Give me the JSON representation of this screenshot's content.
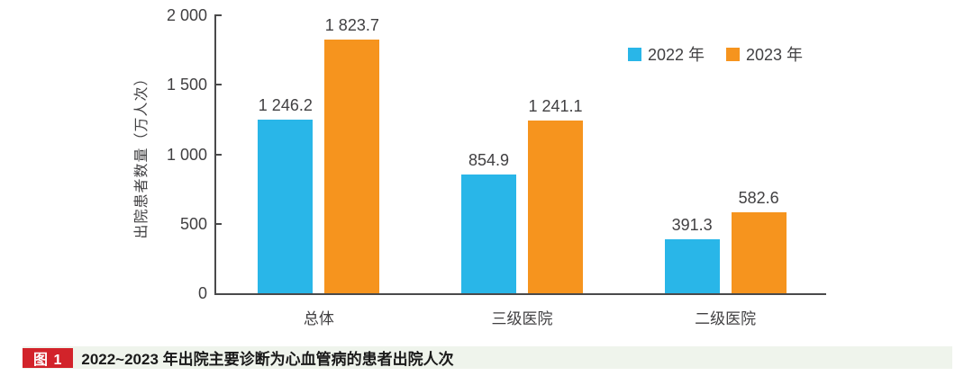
{
  "chart_data": {
    "type": "bar",
    "categories": [
      "总体",
      "三级医院",
      "二级医院"
    ],
    "series": [
      {
        "name": "2022 年",
        "color": "#29b6e8",
        "values": [
          1246.2,
          854.9,
          391.3
        ],
        "value_labels": [
          "1 246.2",
          "854.9",
          "391.3"
        ]
      },
      {
        "name": "2023 年",
        "color": "#f6941e",
        "values": [
          1823.7,
          1241.1,
          582.6
        ],
        "value_labels": [
          "1 823.7",
          "1 241.1",
          "582.6"
        ]
      }
    ],
    "title": "",
    "xlabel": "",
    "ylabel": "出院患者数量（万人次）",
    "ylim": [
      0,
      2000
    ],
    "ytick_values": [
      0,
      500,
      1000,
      1500,
      2000
    ],
    "ytick_labels": [
      "0",
      "500",
      "1 000",
      "1 500",
      "2 000"
    ],
    "grid": false,
    "legend_position": "top-right",
    "axis_color": "#4a4a4b",
    "text_color": "#414042"
  },
  "caption": {
    "badge": "图 1",
    "badge_color": "#d2232a",
    "bar_background": "#eff4ec",
    "text": "2022~2023 年出院主要诊断为心血管病的患者出院人次"
  }
}
